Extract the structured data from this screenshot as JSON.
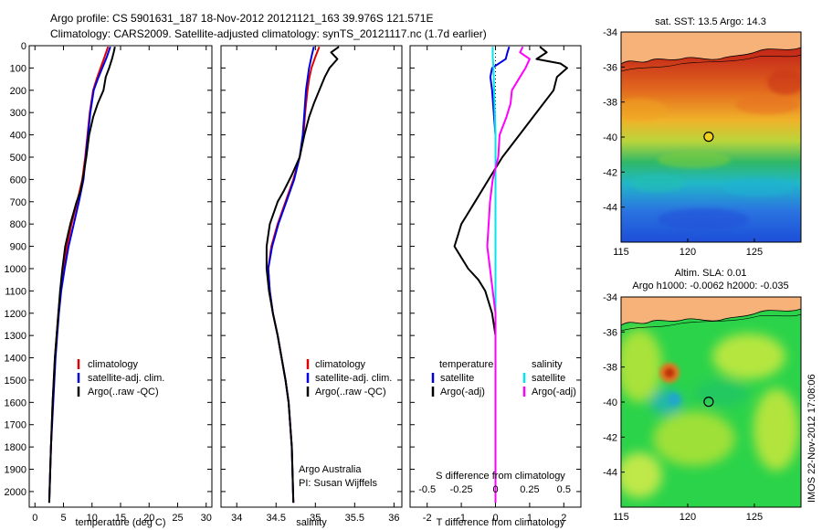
{
  "header": {
    "line1": "Argo profile: CS 5901631_187 18-Nov-2012 20121121_163 39.976S 121.571E",
    "line2": "Climatology: CARS2009. Satellite-adjusted climatology: synTS_20121117.nc (1.7d earlier)"
  },
  "colors": {
    "climatology": "#e00000",
    "satellite": "#0000e0",
    "argo": "#000000",
    "sal_satellite": "#00e5ee",
    "sal_argo": "#ff00ff",
    "land": "#f7b27a"
  },
  "chart_data": [
    {
      "type": "line",
      "id": "temperature",
      "xlabel": "temperature (deg C)",
      "ylabel": "",
      "xlim": [
        -1,
        31
      ],
      "ylim": [
        2070,
        0
      ],
      "xticks": [
        0,
        5,
        10,
        15,
        20,
        25,
        30
      ],
      "yticks": [
        0,
        100,
        200,
        300,
        400,
        500,
        600,
        700,
        800,
        900,
        1000,
        1100,
        1200,
        1300,
        1400,
        1500,
        1600,
        1700,
        1800,
        1900,
        2000
      ],
      "legend": [
        "climatology",
        "satellite-adj. clim.",
        "Argo(..raw -QC)"
      ],
      "series": [
        {
          "name": "climatology",
          "color": "#e00000",
          "depth": [
            5,
            50,
            100,
            150,
            200,
            300,
            400,
            500,
            600,
            700,
            800,
            900,
            1000,
            1100,
            1200,
            1300,
            1400,
            1600,
            1800,
            2050
          ],
          "value": [
            12.8,
            12.2,
            11.5,
            10.8,
            10.2,
            9.6,
            9.2,
            8.8,
            8.3,
            7.4,
            6.4,
            5.6,
            5.0,
            4.5,
            4.1,
            3.8,
            3.5,
            3.1,
            2.8,
            2.5
          ]
        },
        {
          "name": "satellite-adj. clim.",
          "color": "#0000e0",
          "depth": [
            5,
            50,
            100,
            150,
            200,
            300,
            400,
            500,
            600,
            700,
            800,
            900,
            1000,
            1100,
            1200,
            1300,
            1400,
            1600,
            1800,
            2050
          ],
          "value": [
            13.2,
            12.6,
            11.8,
            11.0,
            10.3,
            9.7,
            9.3,
            8.9,
            8.5,
            7.7,
            6.8,
            5.9,
            5.2,
            4.6,
            4.2,
            3.9,
            3.6,
            3.2,
            2.8,
            2.5
          ]
        },
        {
          "name": "Argo(..raw -QC)",
          "color": "#000000",
          "depth": [
            5,
            30,
            60,
            100,
            140,
            200,
            260,
            320,
            400,
            500,
            580,
            650,
            700,
            800,
            900,
            1000,
            1100,
            1200,
            1300,
            1400,
            1600,
            1800,
            2050
          ],
          "value": [
            14.0,
            13.8,
            13.5,
            13.0,
            12.4,
            12.0,
            11.0,
            10.2,
            9.5,
            9.0,
            8.5,
            8.0,
            7.3,
            6.2,
            5.3,
            4.8,
            4.4,
            4.1,
            3.8,
            3.5,
            3.1,
            2.8,
            2.5
          ]
        }
      ]
    },
    {
      "type": "line",
      "id": "salinity",
      "xlabel": "salinity",
      "ylabel": "",
      "xlim": [
        33.8,
        36.1
      ],
      "ylim": [
        2070,
        0
      ],
      "xticks": [
        34,
        34.5,
        35,
        35.5,
        36
      ],
      "legend": [
        "climatology",
        "satellite-adj. clim.",
        "Argo(..raw -QC)"
      ],
      "note": [
        "Argo Australia",
        "PI: Susan Wijffels"
      ],
      "series": [
        {
          "name": "climatology",
          "color": "#e00000",
          "depth": [
            5,
            50,
            100,
            150,
            200,
            300,
            400,
            500,
            600,
            700,
            800,
            900,
            1000,
            1100,
            1200,
            1300,
            1400,
            1500,
            1600,
            1800,
            2050
          ],
          "value": [
            35.05,
            35.0,
            34.95,
            34.92,
            34.9,
            34.87,
            34.85,
            34.8,
            34.72,
            34.62,
            34.52,
            34.44,
            34.4,
            34.42,
            34.46,
            34.52,
            34.57,
            34.62,
            34.66,
            34.7,
            34.72
          ]
        },
        {
          "name": "satellite-adj. clim.",
          "color": "#0000e0",
          "depth": [
            5,
            50,
            100,
            150,
            200,
            300,
            400,
            500,
            600,
            700,
            800,
            900,
            1000,
            1100,
            1200,
            1300,
            1400,
            1500,
            1600,
            1800,
            2050
          ],
          "value": [
            34.98,
            34.95,
            34.92,
            34.9,
            34.88,
            34.86,
            34.84,
            34.8,
            34.73,
            34.63,
            34.53,
            34.45,
            34.4,
            34.42,
            34.46,
            34.52,
            34.57,
            34.62,
            34.66,
            34.7,
            34.72
          ]
        },
        {
          "name": "Argo(..raw -QC)",
          "color": "#000000",
          "depth": [
            5,
            30,
            60,
            100,
            140,
            200,
            260,
            320,
            400,
            500,
            580,
            650,
            700,
            800,
            900,
            1000,
            1100,
            1200,
            1300,
            1400,
            1500,
            1600,
            1800,
            2050
          ],
          "value": [
            35.3,
            35.2,
            35.28,
            35.18,
            35.12,
            35.05,
            34.98,
            34.92,
            34.86,
            34.8,
            34.7,
            34.6,
            34.52,
            34.42,
            34.38,
            34.38,
            34.41,
            34.46,
            34.52,
            34.57,
            34.62,
            34.66,
            34.7,
            34.72
          ]
        }
      ]
    },
    {
      "type": "line",
      "id": "difference",
      "xlabel": "T difference from climatology",
      "xlabel2": "S difference from climatology",
      "ylabel": "",
      "xlim": [
        -2.5,
        2.5
      ],
      "ylim": [
        2070,
        0
      ],
      "xticks": [
        -2,
        -1,
        0,
        1,
        2
      ],
      "xticks2": [
        -0.5,
        -0.25,
        0,
        0.25,
        0.5
      ],
      "xticks2_labels": [
        "-0.5",
        "-0.25",
        "0",
        "0.25",
        "0.5"
      ],
      "legend_headers": [
        "temperature",
        "salinity"
      ],
      "legend": [
        "satellite",
        "Argo(-adj)",
        "satellite",
        "Argo(-adj)"
      ],
      "series": [
        {
          "name": "temperature satellite",
          "color": "#0000e0",
          "depth": [
            5,
            30,
            60,
            100,
            140,
            200,
            300,
            400,
            500,
            700,
            900,
            1100,
            1300,
            1500,
            1700,
            1900,
            2050
          ],
          "value": [
            0.4,
            0.35,
            0.3,
            -0.1,
            -0.15,
            -0.1,
            -0.05,
            0.0,
            0.0,
            0.0,
            0.0,
            0.0,
            0.0,
            0.0,
            0.0,
            0.0,
            0.0
          ]
        },
        {
          "name": "temperature Argo(-adj)",
          "color": "#000000",
          "depth": [
            5,
            30,
            60,
            80,
            100,
            140,
            200,
            260,
            320,
            400,
            500,
            600,
            700,
            800,
            850,
            900,
            950,
            1000,
            1050,
            1100,
            1200,
            1300,
            1400,
            1600,
            1800,
            2050
          ],
          "value": [
            1.3,
            1.5,
            1.2,
            1.9,
            2.1,
            1.8,
            1.7,
            1.4,
            1.1,
            0.7,
            0.2,
            -0.2,
            -0.6,
            -1.0,
            -1.1,
            -1.2,
            -1.0,
            -0.8,
            -0.5,
            -0.3,
            -0.1,
            0.0,
            0.0,
            0.0,
            0.0,
            0.0
          ]
        },
        {
          "name": "salinity satellite",
          "color": "#00e5ee",
          "depth": [
            5,
            50,
            100,
            200,
            300,
            400,
            500,
            700,
            900,
            1100,
            1300,
            1500,
            1700,
            1900,
            2050
          ],
          "value": [
            -0.02,
            -0.02,
            -0.015,
            -0.01,
            -0.005,
            0.0,
            0.0,
            0.0,
            0.0,
            0.0,
            0.0,
            0.0,
            0.0,
            0.0,
            0.0
          ]
        },
        {
          "name": "salinity Argo(-adj)",
          "color": "#ff00ff",
          "depth": [
            5,
            30,
            60,
            100,
            140,
            200,
            260,
            320,
            400,
            500,
            600,
            700,
            800,
            900,
            1000,
            1100,
            1200,
            1300,
            1400,
            1600,
            1800,
            2050
          ],
          "value": [
            0.2,
            0.18,
            0.25,
            0.22,
            0.18,
            0.12,
            0.11,
            0.08,
            0.03,
            0.02,
            -0.02,
            -0.04,
            -0.05,
            -0.06,
            -0.04,
            -0.02,
            0.0,
            0.0,
            0.0,
            0.0,
            0.0,
            0.0
          ]
        }
      ]
    },
    {
      "type": "heatmap",
      "id": "sst_map",
      "title": "sat. SST: 13.5  Argo: 14.3",
      "xlim": [
        115,
        128.5
      ],
      "ylim": [
        -46,
        -34
      ],
      "xticks": [
        115,
        120,
        125
      ],
      "yticks": [
        -34,
        -36,
        -38,
        -40,
        -42,
        -44
      ],
      "ytick_labels": [
        "-34",
        "-36",
        "-38",
        "-40",
        "-42",
        "-44"
      ],
      "float_position": {
        "lon": 121.57,
        "lat": -39.98
      }
    },
    {
      "type": "heatmap",
      "id": "sla_map",
      "title_line1": "Altim. SLA: 0.01",
      "title_line2": "Argo h1000: -0.0062  h2000: -0.035",
      "xlim": [
        115,
        128.5
      ],
      "ylim": [
        -46,
        -34
      ],
      "xticks": [
        115,
        120,
        125
      ],
      "yticks": [
        -34,
        -36,
        -38,
        -40,
        -42,
        -44
      ],
      "ytick_labels": [
        "-34",
        "-36",
        "-38",
        "-40",
        "-42",
        "-44"
      ],
      "float_position": {
        "lon": 121.57,
        "lat": -39.98
      }
    }
  ],
  "footer_stamp": "IMOS 22-Nov-2012 17:08:06"
}
